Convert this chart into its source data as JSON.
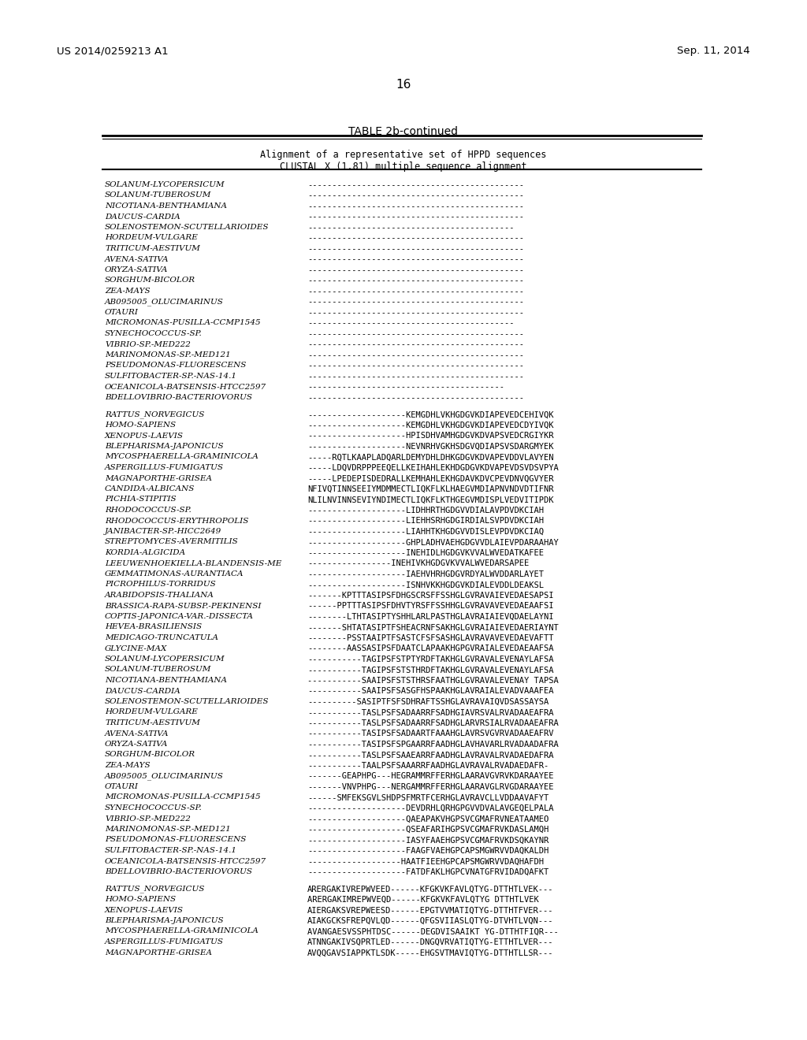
{
  "header_left": "US 2014/0259213 A1",
  "header_right": "Sep. 11, 2014",
  "page_number": "16",
  "table_title": "TABLE 2b-continued",
  "subtitle1": "Alignment of a representative set of HPPD sequences",
  "subtitle2": "CLUSTAL X (1.81) multiple sequence alignment",
  "block1": [
    [
      "SOLANUM-LYCOPERSICUM",
      "--------------------------------------------"
    ],
    [
      "SOLANUM-TUBEROSUM",
      "--------------------------------------------"
    ],
    [
      "NICOTIANA-BENTHAMIANA",
      "--------------------------------------------"
    ],
    [
      "DAUCUS-CARDIA",
      "--------------------------------------------"
    ],
    [
      "SOLENOSTEMON-SCUTELLARIOIDES",
      "------------------------------------------"
    ],
    [
      "HORDEUM-VULGARE",
      "--------------------------------------------"
    ],
    [
      "TRITICUM-AESTIVUM",
      "--------------------------------------------"
    ],
    [
      "AVENA-SATIVA",
      "--------------------------------------------"
    ],
    [
      "ORYZA-SATIVA",
      "--------------------------------------------"
    ],
    [
      "SORGHUM-BICOLOR",
      "--------------------------------------------"
    ],
    [
      "ZEA-MAYS",
      "--------------------------------------------"
    ],
    [
      "AB095005_OLUCIMARINUS",
      "--------------------------------------------"
    ],
    [
      "OTAURI",
      "--------------------------------------------"
    ],
    [
      "MICROMONAS-PUSILLA-CCMP1545",
      "------------------------------------------"
    ],
    [
      "SYNECHOCOCCUS-SP.",
      "--------------------------------------------"
    ],
    [
      "VIBRIO-SP.-MED222",
      "--------------------------------------------"
    ],
    [
      "MARINOMONAS-SP.-MED121",
      "--------------------------------------------"
    ],
    [
      "PSEUDOMONAS-FLUORESCENS",
      "--------------------------------------------"
    ],
    [
      "SULFITOBACTER-SP.-NAS-14.1",
      "--------------------------------------------"
    ],
    [
      "OCEANICOLA-BATSENSIS-HTCC2597",
      "----------------------------------------"
    ],
    [
      "BDELLOVIBRIO-BACTERIOVORUS",
      "--------------------------------------------"
    ]
  ],
  "block2": [
    [
      "RATTUS_NORVEGICUS",
      "--------------------KEMGDHLVKHGDGVKDIAPEVEDCEHIVQK"
    ],
    [
      "HOMO-SAPIENS",
      "--------------------KEMGDHLVKHGDGVKDIAPEVEDCDYIVQK"
    ],
    [
      "XENOPUS-LAEVIS",
      "--------------------HPISDHVAMHGDGVKDVAPSVEDCRGIYKR"
    ],
    [
      "BLEPHARISMA-JAPONICUS",
      "--------------------NEVNRHVGKHSDGVQDIAPSVSDARGMYEK"
    ],
    [
      "MYCOSPHAERELLA-GRAMINICOLA",
      "-----RQTLKAAPLADQARLDEMYDHLDHKGDGVKDVAPEVDDVLAVYEN"
    ],
    [
      "ASPERGILLUS-FUMIGATUS",
      "-----LDQVDRPPPEEQELLKEIHAHLEKHDGDGVKDVAPEVDSVDSVPYA"
    ],
    [
      "MAGNAPORTHE-GRISEA",
      "-----LPEDEPISDEDRALLKEMHAHLEKHGDAVKDVCPEVDNVQGVYER"
    ],
    [
      "CANDIDA-ALBICANS",
      "NFIVQTINNSEEIYMDMMECTLIQKFLKLHAEGVMDIAPNVNDVDTIFNR"
    ],
    [
      "PICHIA-STIPITIS",
      "NLILNVINNSEVIYNDIMECTLIQKFLKTHGEGVMDISPLVEDVITIPDK"
    ],
    [
      "RHODOCOCCUS-SP.",
      "--------------------LIDHHRTHGDGVVDIALAVPDVDKCIAH"
    ],
    [
      "RHODOCOCCUS-ERYTHROPOLIS",
      "--------------------LIEHHSRHGDGIRDIALSVPDVDKCIAH"
    ],
    [
      "JANIBACTER-SP.-HICC2649",
      "--------------------LIAHHTKHGDGVVDISLEVPDVDKCIAQ"
    ],
    [
      "STREPTOMYCES-AVERMITILIS",
      "--------------------GHPLADHVAEHGDGVVDLAIEVPDARAAHAY"
    ],
    [
      "KORDIA-ALGICIDA",
      "--------------------INEHIDLHGDGVKVVALWVEDATKAFEE"
    ],
    [
      "LEEUWENHOEKIELLA-BLANDENSIS-ME",
      "-----------------INEHIVKHGDGVKVVALWVEDARSAPEE"
    ],
    [
      "GEMMATIMONAS-AURANTIACA",
      "--------------------IAEHVHRHGDGVRDYALWVDDARLAYET"
    ],
    [
      "PICROPHILUS-TORRIDUS",
      "--------------------ISNHVKKHGDGVKDIALEVDDLDEAKSL"
    ],
    [
      "ARABIDOPSIS-THALIANA",
      "-------KPTTTASIPSFDHGSCRSFFSSHGLGVRAVAIEVEDAESAPSI"
    ],
    [
      "BRASSICA-RAPA-SUBSP.-PEKINENSI",
      "------PPTTTASIPSFDHVTYRSFFSSHHGLGVRAVAVEVEDAEAAFSI"
    ],
    [
      "COPTIS-JAPONICA-VAR.-DISSECTA",
      "--------LTHTASIPTYSHHLARLPASTHGLAVRAIAIEVQDAELAYNI"
    ],
    [
      "HEVEA-BRASILIENSIS",
      "-------SHTATASIPTFSHEACRNFSAKHGLGVRAIAIEVEDAERIAYNT"
    ],
    [
      "MEDICAGO-TRUNCATULA",
      "--------PSSTAAIPTFSASTCFSFSASHGLAVRAVAVEVEDAEVAFTT"
    ],
    [
      "GLYCINE-MAX",
      "--------AASSASIPSFDAATCLAPAAKHGPGVRAIALEVEDAEAAFSA"
    ],
    [
      "SOLANUM-LYCOPERSICUM",
      "-----------TAGIPSFSTPTYRDFTAKHGLGVRAVALEVENAYLAFSA"
    ],
    [
      "SOLANUM-TUBEROSUM",
      "-----------TAGIPSFSTSTHRDFTAKHGLGVRAVALEVENAYLAFSA"
    ],
    [
      "NICOTIANA-BENTHAMIANA",
      "-----------SAAIPSFSTSTHRSFAATHGLGVRAVALEVENAY TAPSA"
    ],
    [
      "DAUCUS-CARDIA",
      "-----------SAAIPSFSASGFHSPAAKHGLAVRAIALEVADVAAAFEA"
    ],
    [
      "SOLENOSTEMON-SCUTELLARIOIDES",
      "----------SASIPTFSFSDHRAFTSSHGLAVRAVAIQVDSASSAYSA"
    ],
    [
      "HORDEUM-VULGARE",
      "-----------TASLPSFSADAARRFSADHGIAVRSVALRVADAAEAFRA"
    ],
    [
      "TRITICUM-AESTIVUM",
      "-----------TASLPSFSADAARRFSADHGLARVRSIALRVADAAEAFRA"
    ],
    [
      "AVENA-SATIVA",
      "-----------TASIPSFSADAARTFAAAHGLAVRSVGVRVADAAEAFRV"
    ],
    [
      "ORYZA-SATIVA",
      "-----------TASIPSFSPGAARRFAADHGLAVHAVARLRVADAADAFRA"
    ],
    [
      "SORGHUM-BICOLOR",
      "-----------TASLPSFSAAEARRFAADHGLAVRAVALRVADAEDAFRA"
    ],
    [
      "ZEA-MAYS",
      "-----------TAALPSFSAAARRFAADHGLAVRAVALRVADAEDAFR-"
    ],
    [
      "AB095005_OLUCIMARINUS",
      "-------GEAPHPG---HEGRAMMRFFERHGLAARAVGVRVKDARAAYEE"
    ],
    [
      "OTAURI",
      "-------VNVPHPG---NERGAMMRFFERHGLAARAVGLRVGDARAAYEE"
    ],
    [
      "MICROMONAS-PUSILLA-CCMP1545",
      "------SMFEKSGVLSHDPSFMRTFCERHGLAVRAVCLLVDDAAVAFYT"
    ],
    [
      "SYNECHOCOCCUS-SP.",
      "--------------------DEVDRHLQRHGPGVVDVALAVGEQELPALA"
    ],
    [
      "VIBRIO-SP.-MED222",
      "--------------------QAEAPAKVHGPSVCGMAFRVNEATAAMEO"
    ],
    [
      "MARINOMONAS-SP.-MED121",
      "--------------------QSEAFARIHGPSVCGMAFRVKDASLAMQH"
    ],
    [
      "PSEUDOMONAS-FLUORESCENS",
      "--------------------IASYFAAEHGPSVCGMAFRVKDSQKAYNR"
    ],
    [
      "SULFITOBACTER-SP.-NAS-14.1",
      "--------------------FAAGFVAEHGPCAPSMGWRVVDAQKALDH"
    ],
    [
      "OCEANICOLA-BATSENSIS-HTCC2597",
      "-------------------HAATFIEEHGPCAPSMGWRVVDAQHAFDH"
    ],
    [
      "BDELLOVIBRIO-BACTERIOVORUS",
      "--------------------FATDFAKLHGPCVNATGFRVIDADQAFKT"
    ]
  ],
  "block3": [
    [
      "RATTUS_NORVEGICUS",
      "ARERGAKIVREPWVEED------KFGKVKFAVLQTYG-DTTHTLVEK---"
    ],
    [
      "HOMO-SAPIENS",
      "ARERGAKIMREPWVEQD------KFGKVKFAVLQTYG DTTHTLVEK"
    ],
    [
      "XENOPUS-LAEVIS",
      "AIERGAKSVREPWEESD------EPGTVVMATIQTYG-DTTHTFVER---"
    ],
    [
      "BLEPHARISMA-JAPONICUS",
      "AIAKGCKSFREPQVLQD------QFGSVIIASLQTYG-DTVHTLVQN---"
    ],
    [
      "MYCOSPHAERELLA-GRAMINICOLA",
      "AVANGAESVSSPHTDSC------DEGDVISAAIKT YG-DTTHTFIQR---"
    ],
    [
      "ASPERGILLUS-FUMIGATUS",
      "ATNNGAKIVSQPRTLED------DNGQVRVATIQTYG-ETTHTLVER---"
    ],
    [
      "MAGNAPORTHE-GRISEA",
      "AVQQGAVSIAPPKTLSDK-----EHGSVTMAVIQTYG-DTTHTLLSR---"
    ]
  ]
}
